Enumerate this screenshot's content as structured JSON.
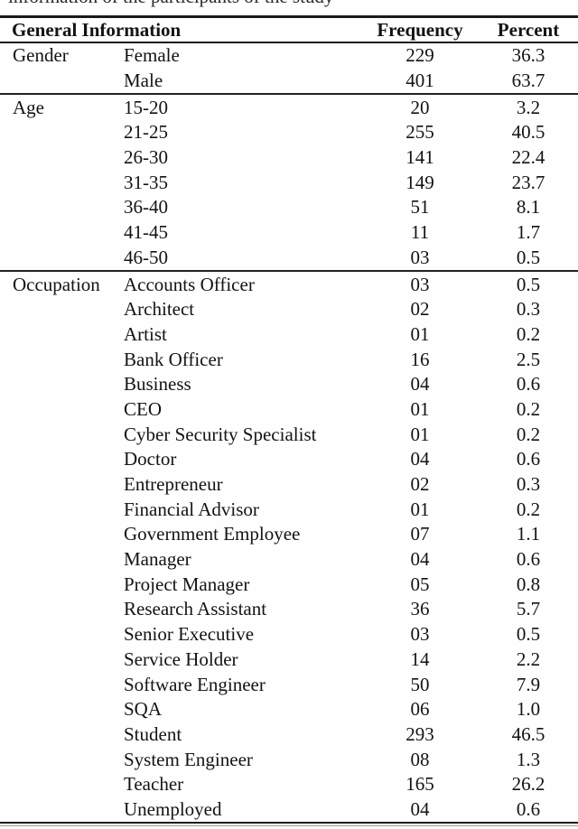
{
  "caption_fragment": "information of the participants of the study",
  "table": {
    "header": {
      "general": "General Information",
      "frequency": "Frequency",
      "percent": "Percent"
    },
    "sections": [
      {
        "group": "Gender",
        "rows": [
          {
            "label": "Female",
            "freq": "229",
            "pct": "36.3"
          },
          {
            "label": "Male",
            "freq": "401",
            "pct": "63.7"
          }
        ]
      },
      {
        "group": "Age",
        "rows": [
          {
            "label": "15-20",
            "freq": "20",
            "pct": "3.2"
          },
          {
            "label": "21-25",
            "freq": "255",
            "pct": "40.5"
          },
          {
            "label": "26-30",
            "freq": "141",
            "pct": "22.4"
          },
          {
            "label": "31-35",
            "freq": "149",
            "pct": "23.7"
          },
          {
            "label": "36-40",
            "freq": "51",
            "pct": "8.1"
          },
          {
            "label": "41-45",
            "freq": "11",
            "pct": "1.7"
          },
          {
            "label": "46-50",
            "freq": "03",
            "pct": "0.5"
          }
        ]
      },
      {
        "group": "Occupation",
        "rows": [
          {
            "label": "Accounts Officer",
            "freq": "03",
            "pct": "0.5"
          },
          {
            "label": "Architect",
            "freq": "02",
            "pct": "0.3"
          },
          {
            "label": "Artist",
            "freq": "01",
            "pct": "0.2"
          },
          {
            "label": "Bank Officer",
            "freq": "16",
            "pct": "2.5"
          },
          {
            "label": "Business",
            "freq": "04",
            "pct": "0.6"
          },
          {
            "label": "CEO",
            "freq": "01",
            "pct": "0.2"
          },
          {
            "label": "Cyber Security Specialist",
            "freq": "01",
            "pct": "0.2"
          },
          {
            "label": "Doctor",
            "freq": "04",
            "pct": "0.6"
          },
          {
            "label": "Entrepreneur",
            "freq": "02",
            "pct": "0.3"
          },
          {
            "label": "Financial Advisor",
            "freq": "01",
            "pct": "0.2"
          },
          {
            "label": "Government Employee",
            "freq": "07",
            "pct": "1.1"
          },
          {
            "label": "Manager",
            "freq": "04",
            "pct": "0.6"
          },
          {
            "label": "Project Manager",
            "freq": "05",
            "pct": "0.8"
          },
          {
            "label": "Research Assistant",
            "freq": "36",
            "pct": "5.7"
          },
          {
            "label": "Senior Executive",
            "freq": "03",
            "pct": "0.5"
          },
          {
            "label": "Service Holder",
            "freq": "14",
            "pct": "2.2"
          },
          {
            "label": "Software Engineer",
            "freq": "50",
            "pct": "7.9"
          },
          {
            "label": "SQA",
            "freq": "06",
            "pct": "1.0"
          },
          {
            "label": "Student",
            "freq": "293",
            "pct": "46.5"
          },
          {
            "label": "System Engineer",
            "freq": "08",
            "pct": "1.3"
          },
          {
            "label": "Teacher",
            "freq": "165",
            "pct": "26.2"
          },
          {
            "label": "Unemployed",
            "freq": "04",
            "pct": "0.6"
          }
        ]
      }
    ]
  }
}
